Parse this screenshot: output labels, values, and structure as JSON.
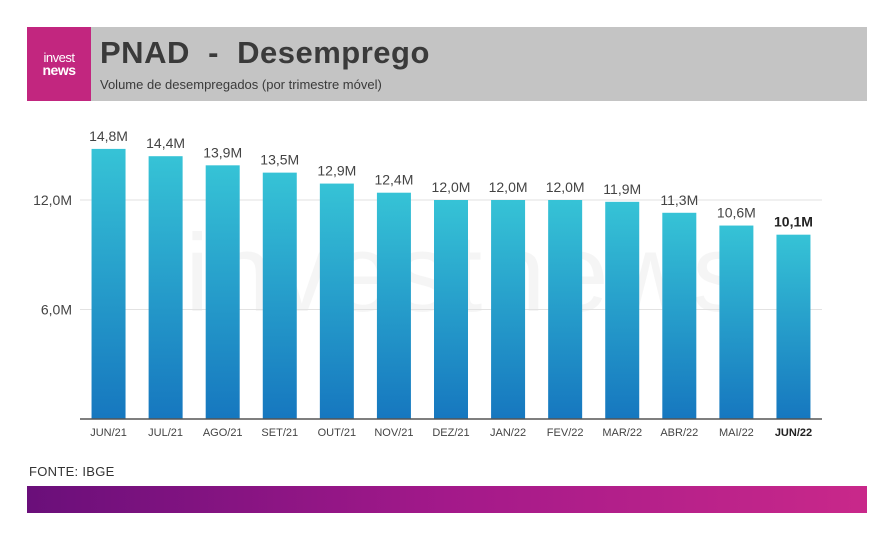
{
  "brand": {
    "logo_line1": "invest",
    "logo_line2": "news",
    "watermark": "investnews"
  },
  "header": {
    "title": "PNAD  -  Desemprego",
    "subtitle": "Volume de desempregados (por trimestre móvel)"
  },
  "source": "FONTE: IBGE",
  "colors": {
    "bar_top": "#36c3d6",
    "bar_bottom": "#1677bf",
    "header_bg": "#c4c4c4",
    "logo_bg": "#c2267f"
  },
  "chart_data": {
    "type": "bar",
    "title": "PNAD - Desemprego",
    "subtitle": "Volume de desempregados (por trimestre móvel)",
    "categories": [
      "JUN/21",
      "JUL/21",
      "AGO/21",
      "SET/21",
      "OUT/21",
      "NOV/21",
      "DEZ/21",
      "JAN/22",
      "FEV/22",
      "MAR/22",
      "ABR/22",
      "MAI/22",
      "JUN/22"
    ],
    "values": [
      14.8,
      14.4,
      13.9,
      13.5,
      12.9,
      12.4,
      12.0,
      12.0,
      12.0,
      11.9,
      11.3,
      10.6,
      10.1
    ],
    "value_labels": [
      "14,8M",
      "14,4M",
      "13,9M",
      "13,5M",
      "12,9M",
      "12,4M",
      "12,0M",
      "12,0M",
      "12,0M",
      "11,9M",
      "11,3M",
      "10,6M",
      "10,1M"
    ],
    "highlight_index": 12,
    "yticks": [
      6,
      12
    ],
    "ytick_labels": [
      "6,0M",
      "12,0M"
    ],
    "ylim": [
      0,
      16
    ],
    "grid": true,
    "xlabel": "",
    "ylabel": ""
  }
}
